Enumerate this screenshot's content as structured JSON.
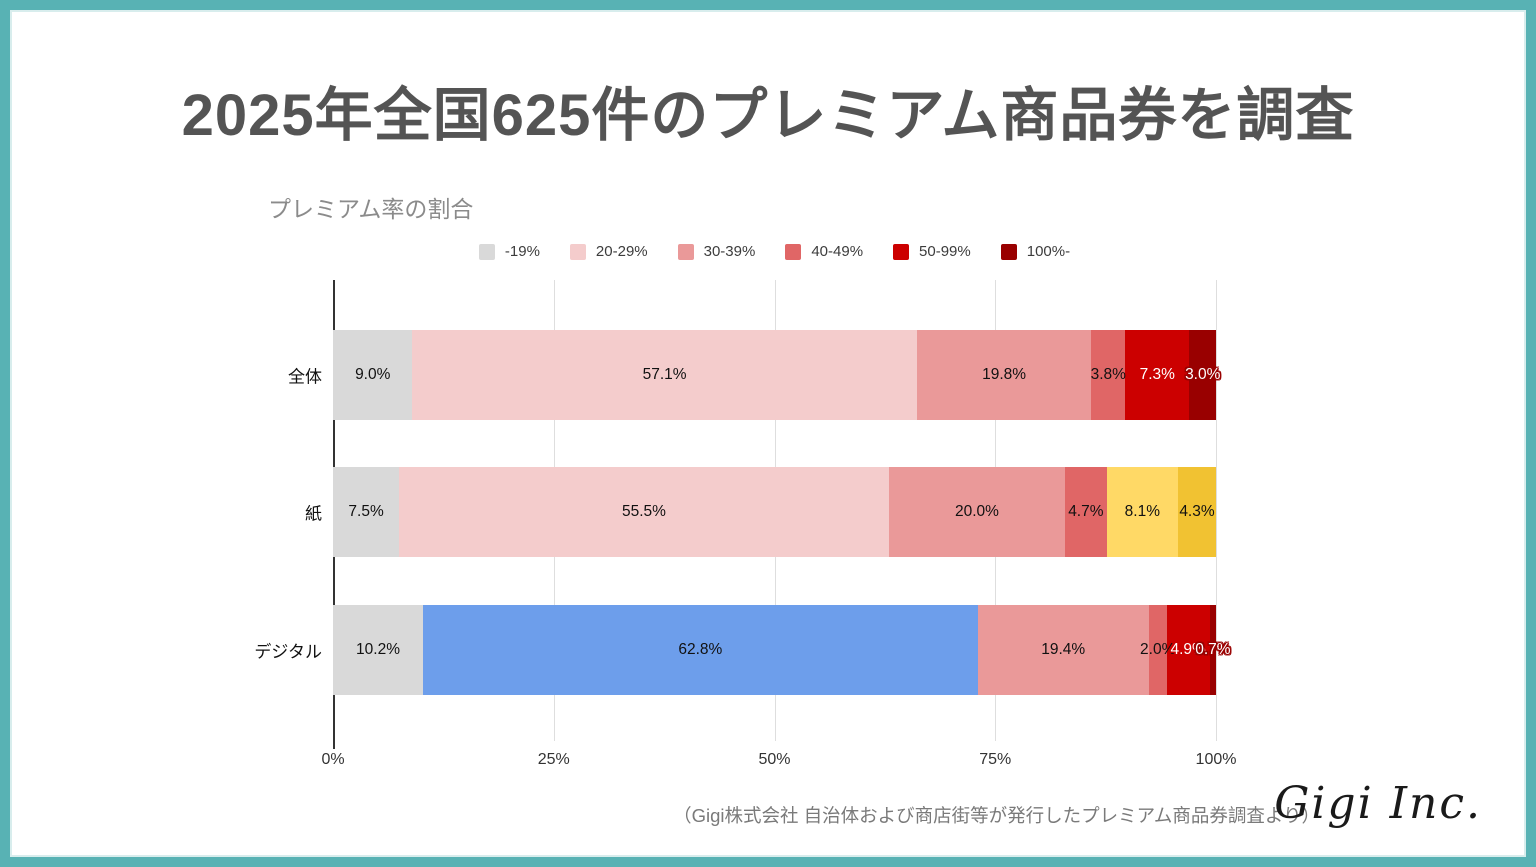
{
  "page": {
    "title": "2025年全国625件のプレミアム商品券を調査",
    "source_note": "（Gigi株式会社 自治体および商店街等が発行したプレミアム商品券調査より）",
    "logo_text": "Gigi Inc."
  },
  "colors": {
    "frame_teal": "#58b2b4",
    "title_gray": "#545454",
    "axis_line": "#333333",
    "gridline": "#dedede"
  },
  "chart_data": {
    "type": "bar",
    "orientation": "horizontal",
    "stacked": true,
    "title": "プレミアム率の割合",
    "legend_position": "top",
    "grid": true,
    "x_axis": {
      "range": [
        0,
        100
      ],
      "ticks": [
        {
          "label": "0%",
          "pos": 0
        },
        {
          "label": "25%",
          "pos": 25
        },
        {
          "label": "50%",
          "pos": 50
        },
        {
          "label": "75%",
          "pos": 75
        },
        {
          "label": "100%",
          "pos": 100
        }
      ]
    },
    "legend": [
      {
        "label": "-19%",
        "color": "#d9d9d9"
      },
      {
        "label": "20-29%",
        "color": "#f4cccc"
      },
      {
        "label": "30-39%",
        "color": "#ea9999"
      },
      {
        "label": "40-49%",
        "color": "#e06666"
      },
      {
        "label": "50-99%",
        "color": "#cc0000"
      },
      {
        "label": "100%-",
        "color": "#990000"
      }
    ],
    "categories": [
      "全体",
      "紙",
      "デジタル"
    ],
    "rows": [
      {
        "category": "全体",
        "segments": [
          {
            "value": 9.0,
            "label": "9.0%",
            "color": "#d9d9d9",
            "label_style": "dark"
          },
          {
            "value": 57.1,
            "label": "57.1%",
            "color": "#f4cccc",
            "label_style": "dark"
          },
          {
            "value": 19.8,
            "label": "19.8%",
            "color": "#ea9999",
            "label_style": "dark"
          },
          {
            "value": 3.8,
            "label": "3.8%",
            "color": "#e06666",
            "label_style": "dark"
          },
          {
            "value": 7.3,
            "label": "7.3%",
            "color": "#cc0000",
            "label_style": "light"
          },
          {
            "value": 3.0,
            "label": "3.0%",
            "color": "#990000",
            "label_style": "light-outlined"
          }
        ]
      },
      {
        "category": "紙",
        "segments": [
          {
            "value": 7.5,
            "label": "7.5%",
            "color": "#d9d9d9",
            "label_style": "dark"
          },
          {
            "value": 55.5,
            "label": "55.5%",
            "color": "#f4cccc",
            "label_style": "dark"
          },
          {
            "value": 20.0,
            "label": "20.0%",
            "color": "#ea9999",
            "label_style": "dark"
          },
          {
            "value": 4.7,
            "label": "4.7%",
            "color": "#e06666",
            "label_style": "dark"
          },
          {
            "value": 8.1,
            "label": "8.1%",
            "color": "#ffd966",
            "label_style": "dark"
          },
          {
            "value": 4.3,
            "label": "4.3%",
            "color": "#f1c232",
            "label_style": "dark"
          }
        ]
      },
      {
        "category": "デジタル",
        "segments": [
          {
            "value": 10.2,
            "label": "10.2%",
            "color": "#d9d9d9",
            "label_style": "dark"
          },
          {
            "value": 62.8,
            "label": "62.8%",
            "color": "#6d9eeb",
            "label_style": "dark"
          },
          {
            "value": 19.4,
            "label": "19.4%",
            "color": "#ea9999",
            "label_style": "dark"
          },
          {
            "value": 2.0,
            "label": "2.0%",
            "color": "#e06666",
            "label_style": "dark"
          },
          {
            "value": 4.9,
            "label": "4.9%",
            "color": "#cc0000",
            "label_style": "light-outlined"
          },
          {
            "value": 0.7,
            "label": "0.7%",
            "color": "#990000",
            "label_style": "light-outlined"
          }
        ]
      }
    ]
  }
}
